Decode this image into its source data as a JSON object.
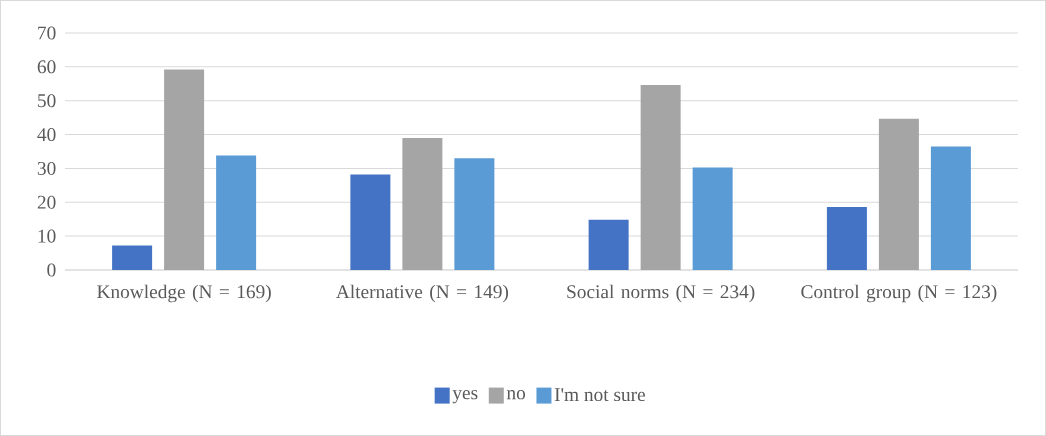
{
  "chart_data": {
    "type": "bar",
    "categories": [
      "Knowledge (N = 169)",
      "Alternative (N = 149)",
      "Social norms (N = 234)",
      "Control group (N = 123)"
    ],
    "series": [
      {
        "name": "yes",
        "color": "#4472c4",
        "values": [
          7.2,
          28.2,
          14.8,
          18.6
        ]
      },
      {
        "name": "no",
        "color": "#a5a5a5",
        "values": [
          59.2,
          39,
          54.6,
          44.7
        ]
      },
      {
        "name": "I'm not sure",
        "color": "#5b9bd5",
        "values": [
          33.8,
          33,
          30.3,
          36.5
        ]
      }
    ],
    "ylim": [
      0,
      70
    ],
    "yticks": [
      0,
      10,
      20,
      30,
      40,
      50,
      60,
      70
    ],
    "grid": "y",
    "legend": "bottom"
  }
}
